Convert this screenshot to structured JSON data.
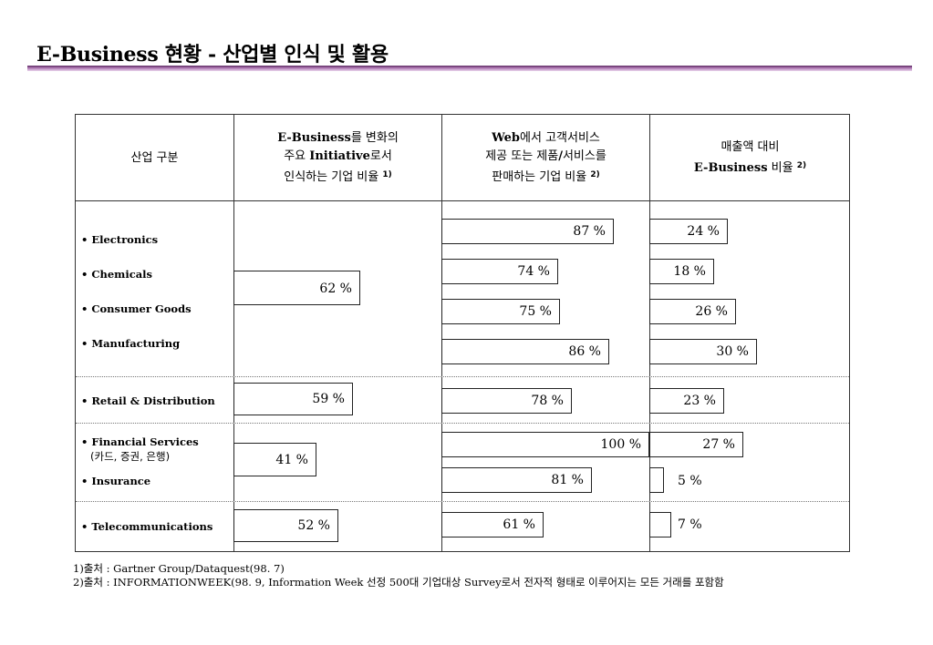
{
  "title": "E-Business 현황 - 산업별 인식 및 활용",
  "header": {
    "col1": "산업 구분",
    "col2": {
      "lead": "E-Business",
      "rest1": "를 변화의",
      "line2a": "주요 ",
      "line2b": "Initiative",
      "line2c": "로서",
      "line3": "인식하는 기업 비율 ",
      "sup": "1)"
    },
    "col3": {
      "lead": "Web",
      "rest1": "에서 고객서비스",
      "line2a": "제공 또는 제품",
      "line2b": "/",
      "line2c": "서비스를",
      "line3": "판매하는 기업 비율 ",
      "sup": "2)"
    },
    "col4": {
      "line1": "매출액 대비",
      "line2a": "E-Business",
      "line2b": " 비율 ",
      "sup": "2)"
    }
  },
  "industries": {
    "electronics": "• Electronics",
    "chemicals": "• Chemicals",
    "consumer_goods": "• Consumer Goods",
    "manufacturing": "• Manufacturing",
    "retail": "• Retail & Distribution",
    "financial": "• Financial Services",
    "financial_sub": "(카드, 증권, 은행)",
    "insurance": "• Insurance",
    "telecom": "• Telecommunications"
  },
  "values": {
    "initiative": {
      "manufacturing_group": "62 %",
      "retail": "59 %",
      "finance_group": "41 %",
      "telecom": "52 %"
    },
    "web": {
      "electronics": "87 %",
      "chemicals": "74 %",
      "consumer_goods": "75 %",
      "manufacturing": "86 %",
      "retail": "78 %",
      "financial": "100 %",
      "insurance": "81 %",
      "telecom": "61 %"
    },
    "revenue": {
      "electronics": "24 %",
      "chemicals": "18 %",
      "consumer_goods": "26 %",
      "manufacturing": "30 %",
      "retail": "23 %",
      "financial": "27 %",
      "insurance": "5 %",
      "telecom": "7 %"
    }
  },
  "levels": {
    "initiative": {
      "manufacturing_group": 62,
      "retail": 59,
      "finance_group": 41,
      "telecom": 52
    },
    "web": {
      "electronics": 87,
      "chemicals": 74,
      "consumer_goods": 75,
      "manufacturing": 86,
      "retail": 78,
      "financial": 100,
      "insurance": 81,
      "telecom": 61
    },
    "revenue": {
      "electronics": 24,
      "chemicals": 18,
      "consumer_goods": 26,
      "manufacturing": 30,
      "retail": 23,
      "financial": 27,
      "insurance": 5,
      "telecom": 7
    }
  },
  "footnotes": {
    "note1": "1)출처 : Gartner Group/Dataquest(98. 7)",
    "note2": "2)출처 : INFORMATIONWEEK(98. 9, Information Week 선정 500대 기업대상 Survey로서 전자적 형태로 이루어지는 모든 거래를 포함함"
  }
}
